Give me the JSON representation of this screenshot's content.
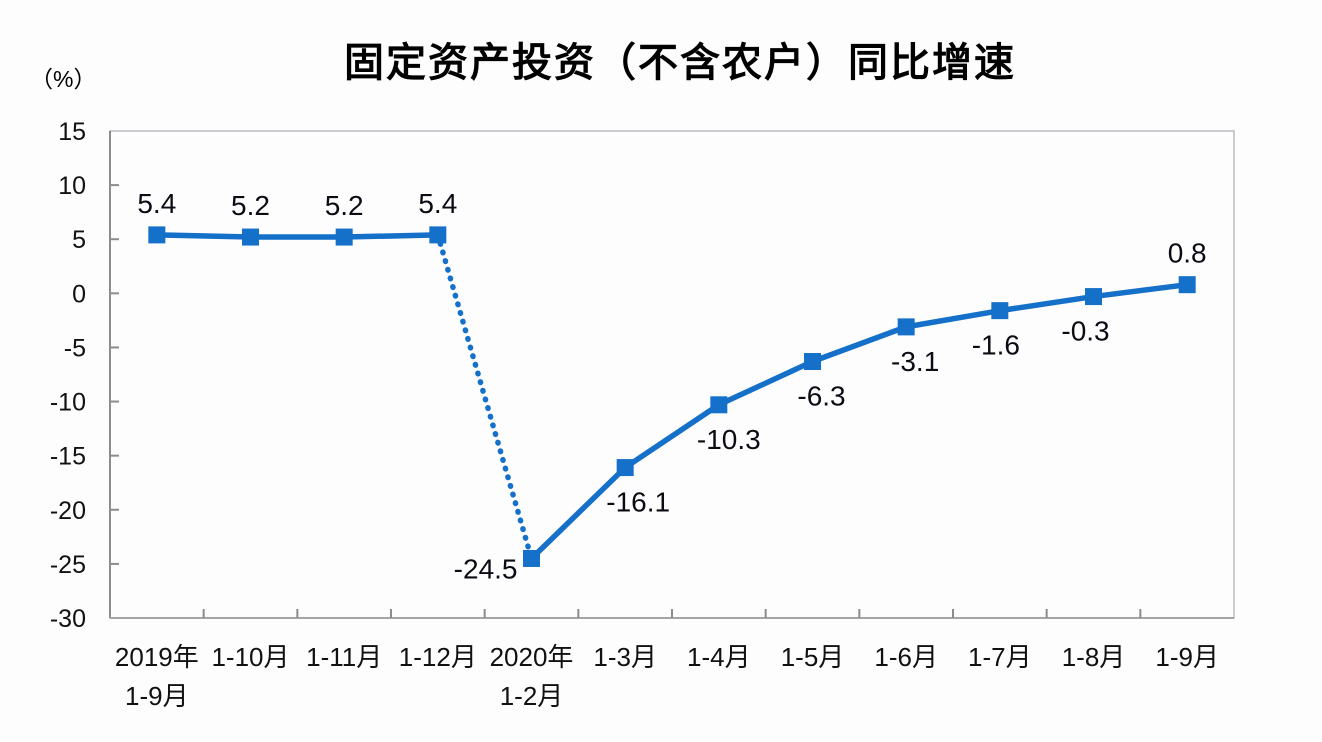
{
  "chart_data": {
    "type": "line",
    "title": "固定资产投资（不含农户）同比增速",
    "unit_label": "（%）",
    "categories": [
      [
        "2019年",
        "1-9月"
      ],
      [
        "1-10月"
      ],
      [
        "1-11月"
      ],
      [
        "1-12月"
      ],
      [
        "2020年",
        "1-2月"
      ],
      [
        "1-3月"
      ],
      [
        "1-4月"
      ],
      [
        "1-5月"
      ],
      [
        "1-6月"
      ],
      [
        "1-7月"
      ],
      [
        "1-8月"
      ],
      [
        "1-9月"
      ]
    ],
    "values": [
      5.4,
      5.2,
      5.2,
      5.4,
      -24.5,
      -16.1,
      -10.3,
      -6.3,
      -3.1,
      -1.6,
      -0.3,
      0.8
    ],
    "data_labels": [
      "5.4",
      "5.2",
      "5.2",
      "5.4",
      "-24.5",
      "-16.1",
      "-10.3",
      "-6.3",
      "-3.1",
      "-1.6",
      "-0.3",
      "0.8"
    ],
    "label_positions": [
      "above",
      "above",
      "above",
      "above",
      "left",
      "below",
      "below",
      "below",
      "below",
      "below",
      "below",
      "above"
    ],
    "y_ticks": [
      15,
      10,
      5,
      0,
      -5,
      -10,
      -15,
      -20,
      -25,
      -30
    ],
    "ylim": [
      -30,
      15
    ],
    "grid": false,
    "legend": false,
    "marker": "square",
    "dotted_segment_between": [
      3,
      4
    ],
    "line_color": "#1470C8",
    "axis_color": "#8c8c8c",
    "border_color": "#bcbcc0",
    "text_color": "#111111"
  }
}
